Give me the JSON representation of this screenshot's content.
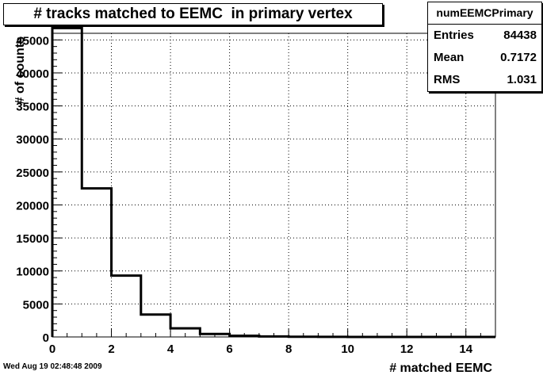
{
  "chart_data": {
    "type": "bar",
    "title": "# tracks matched to EEMC  in primary vertex",
    "xlabel": "# matched EEMC",
    "ylabel": "# of counts",
    "xlim": [
      0,
      15
    ],
    "ylim": [
      0,
      46000
    ],
    "grid": true,
    "bin_edges": [
      0,
      1,
      2,
      3,
      4,
      5,
      6,
      7,
      8,
      9,
      10,
      11,
      12,
      13,
      14,
      15
    ],
    "values": [
      46800,
      22500,
      9300,
      3400,
      1300,
      450,
      180,
      70,
      30,
      10,
      5,
      2,
      0,
      0,
      0
    ],
    "x_ticks": [
      0,
      2,
      4,
      6,
      8,
      10,
      12,
      14
    ],
    "y_ticks": [
      0,
      5000,
      10000,
      15000,
      20000,
      25000,
      30000,
      35000,
      40000,
      45000
    ]
  },
  "stats": {
    "name": "numEEMCPrimary",
    "rows": [
      {
        "key": "Entries",
        "value": "84438"
      },
      {
        "key": "Mean",
        "value": "0.7172"
      },
      {
        "key": "RMS",
        "value": "1.031"
      }
    ]
  },
  "footer": {
    "date": "Wed Aug 19 02:48:48 2009"
  },
  "colors": {
    "line": "#000000",
    "grid": "#000000",
    "background": "#ffffff"
  }
}
